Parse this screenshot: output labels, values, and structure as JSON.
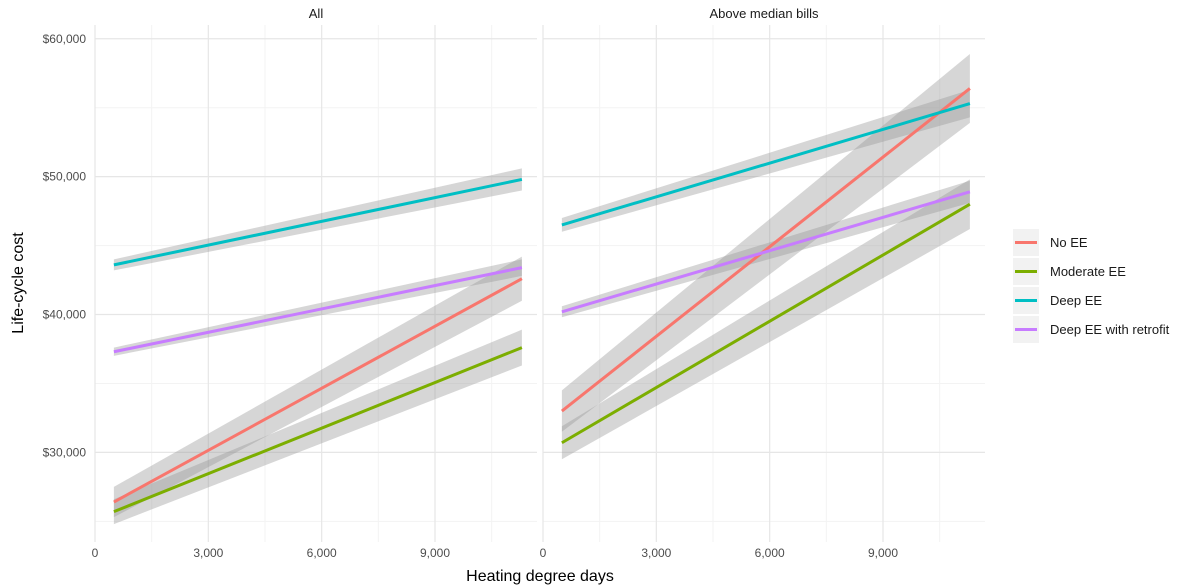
{
  "chart_data": {
    "type": "line",
    "xlabel": "Heating degree days",
    "ylabel": "Life-cycle cost",
    "xlim": [
      0,
      11700
    ],
    "ylim": [
      23500,
      61000
    ],
    "x_ticks": [
      0,
      3000,
      6000,
      9000
    ],
    "x_tick_labels": [
      "0",
      "3,000",
      "6,000",
      "9,000"
    ],
    "y_ticks": [
      30000,
      40000,
      50000,
      60000
    ],
    "y_tick_labels": [
      "$30,000",
      "$40,000",
      "$50,000",
      "$60,000"
    ],
    "grid": true,
    "legend_position": "right",
    "confidence_band": true,
    "series_colors": {
      "No EE": "#F8766D",
      "Moderate EE": "#7CAE00",
      "Deep EE": "#00BFC4",
      "Deep EE with retrofit": "#C77CFF"
    },
    "legend": [
      "No EE",
      "Moderate EE",
      "Deep EE",
      "Deep EE with retrofit"
    ],
    "panels": [
      {
        "title": "All",
        "series": [
          {
            "name": "No EE",
            "x": [
              500,
              11300
            ],
            "y": [
              26400,
              42600
            ],
            "ci_halfwidth": [
              1100,
              1600
            ]
          },
          {
            "name": "Moderate EE",
            "x": [
              500,
              11300
            ],
            "y": [
              25700,
              37600
            ],
            "ci_halfwidth": [
              900,
              1300
            ]
          },
          {
            "name": "Deep EE",
            "x": [
              500,
              11300
            ],
            "y": [
              43600,
              49800
            ],
            "ci_halfwidth": [
              400,
              800
            ]
          },
          {
            "name": "Deep EE with retrofit",
            "x": [
              500,
              11300
            ],
            "y": [
              37300,
              43400
            ],
            "ci_halfwidth": [
              300,
              600
            ]
          }
        ]
      },
      {
        "title": "Above median bills",
        "series": [
          {
            "name": "No EE",
            "x": [
              500,
              11300
            ],
            "y": [
              33000,
              56400
            ],
            "ci_halfwidth": [
              1500,
              2500
            ]
          },
          {
            "name": "Moderate EE",
            "x": [
              500,
              11300
            ],
            "y": [
              30700,
              48000
            ],
            "ci_halfwidth": [
              1200,
              1800
            ]
          },
          {
            "name": "Deep EE",
            "x": [
              500,
              11300
            ],
            "y": [
              46500,
              55300
            ],
            "ci_halfwidth": [
              500,
              1000
            ]
          },
          {
            "name": "Deep EE with retrofit",
            "x": [
              500,
              11300
            ],
            "y": [
              40200,
              48900
            ],
            "ci_halfwidth": [
              400,
              800
            ]
          }
        ]
      }
    ]
  }
}
